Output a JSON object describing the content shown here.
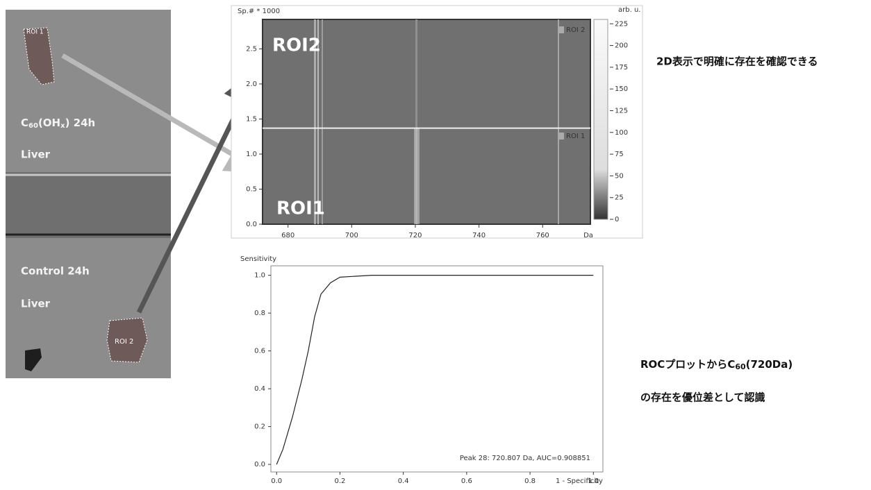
{
  "tissue": {
    "roi1": "ROI 1",
    "roi2": "ROI 2",
    "sample1": {
      "c": "C",
      "sub": "60",
      "mid": "(OH",
      "sub2": "x",
      "end": ") 24h"
    },
    "organ1": "Liver",
    "sample2": "Control 24h",
    "organ2": "Liver"
  },
  "annotations": {
    "top": "2D表示で明確に存在を確認できる",
    "roc_line1": {
      "a": "ROCプロットから",
      "c": "C",
      "sub": "60",
      "b": "(720Da)"
    },
    "roc_line2": "の存在を優位差として認識"
  },
  "chart_data": [
    {
      "type": "heatmap",
      "ylabel": "Sp.# * 1000",
      "xlabel": "Da",
      "zlabel": "arb. u.",
      "xlim": [
        672,
        775
      ],
      "xticks": [
        680,
        700,
        720,
        740,
        760
      ],
      "ylim": [
        0,
        2.92
      ],
      "yticks": [
        {
          "value": 0,
          "label": "0.0"
        },
        0.5,
        {
          "value": 1,
          "label": "1.0"
        },
        1.5,
        {
          "value": 2,
          "label": "2.0"
        },
        2.5
      ],
      "zlim": [
        0,
        230
      ],
      "zticks": [
        0,
        25,
        50,
        75,
        100,
        125,
        150,
        175,
        200,
        225
      ],
      "roi_boundary": 1.37,
      "roi_labels": [
        "ROI1",
        "ROI2"
      ],
      "legend": [
        "ROI 1",
        "ROI 2"
      ]
    },
    {
      "type": "line",
      "ylabel": "Sensitivity",
      "xlabel": "1 - Specificity",
      "annotation": "Peak 28: 720.807 Da, AUC=0.908851",
      "xlim": [
        -0.018,
        1.03
      ],
      "xticks": [
        {
          "value": 0,
          "label": "0.0"
        },
        0.2,
        0.4,
        0.6,
        0.8,
        {
          "value": 1,
          "label": "1.0"
        }
      ],
      "ylim": [
        -0.04,
        1.05
      ],
      "yticks": [
        {
          "value": 0,
          "label": "0.0"
        },
        0.2,
        0.4,
        0.6,
        0.8,
        {
          "value": 1,
          "label": "1.0"
        }
      ],
      "x": [
        0,
        0.02,
        0.05,
        0.08,
        0.1,
        0.12,
        0.14,
        0.17,
        0.2,
        0.3,
        1.0
      ],
      "values": [
        0,
        0.08,
        0.25,
        0.45,
        0.6,
        0.78,
        0.9,
        0.96,
        0.99,
        1.0,
        1.0
      ],
      "color": "#222"
    }
  ]
}
